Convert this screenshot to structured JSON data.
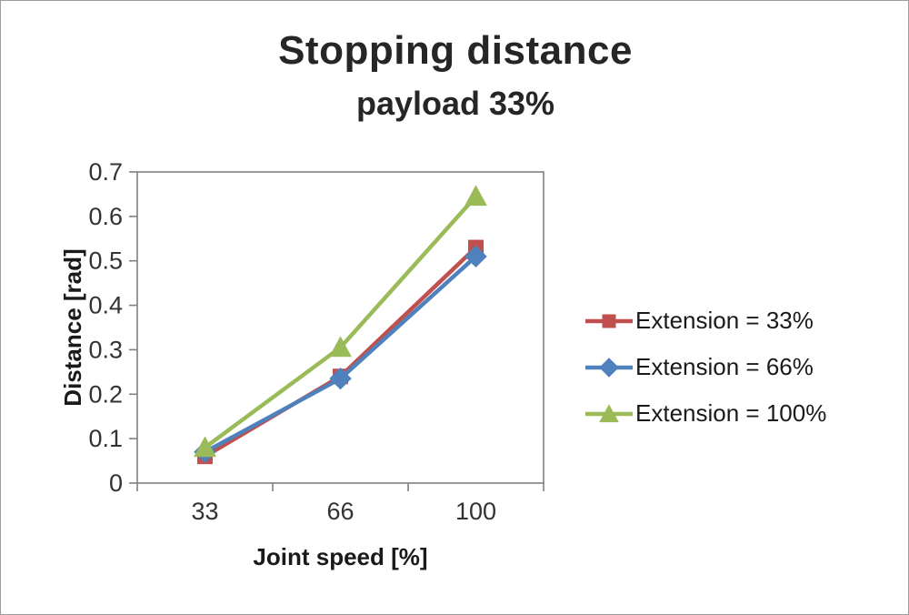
{
  "chart_data": {
    "type": "line",
    "title": "Stopping distance",
    "subtitle": "payload 33%",
    "xlabel": "Joint speed [%]",
    "ylabel": "Distance [rad]",
    "categories": [
      "33",
      "66",
      "100"
    ],
    "ylim": [
      0,
      0.7
    ],
    "ytick_step": 0.1,
    "grid": false,
    "legend_position": "right",
    "axis_color": "#808080",
    "tick_label_color": "#333333",
    "series": [
      {
        "name": "Extension = 33%",
        "marker": "square",
        "color": "#C0504D",
        "values": [
          0.06,
          0.24,
          0.53
        ]
      },
      {
        "name": "Extension = 66%",
        "marker": "diamond",
        "color": "#4F81BD",
        "values": [
          0.07,
          0.235,
          0.51
        ]
      },
      {
        "name": "Extension = 100%",
        "marker": "triangle",
        "color": "#9BBB59",
        "values": [
          0.08,
          0.305,
          0.645
        ]
      }
    ]
  }
}
